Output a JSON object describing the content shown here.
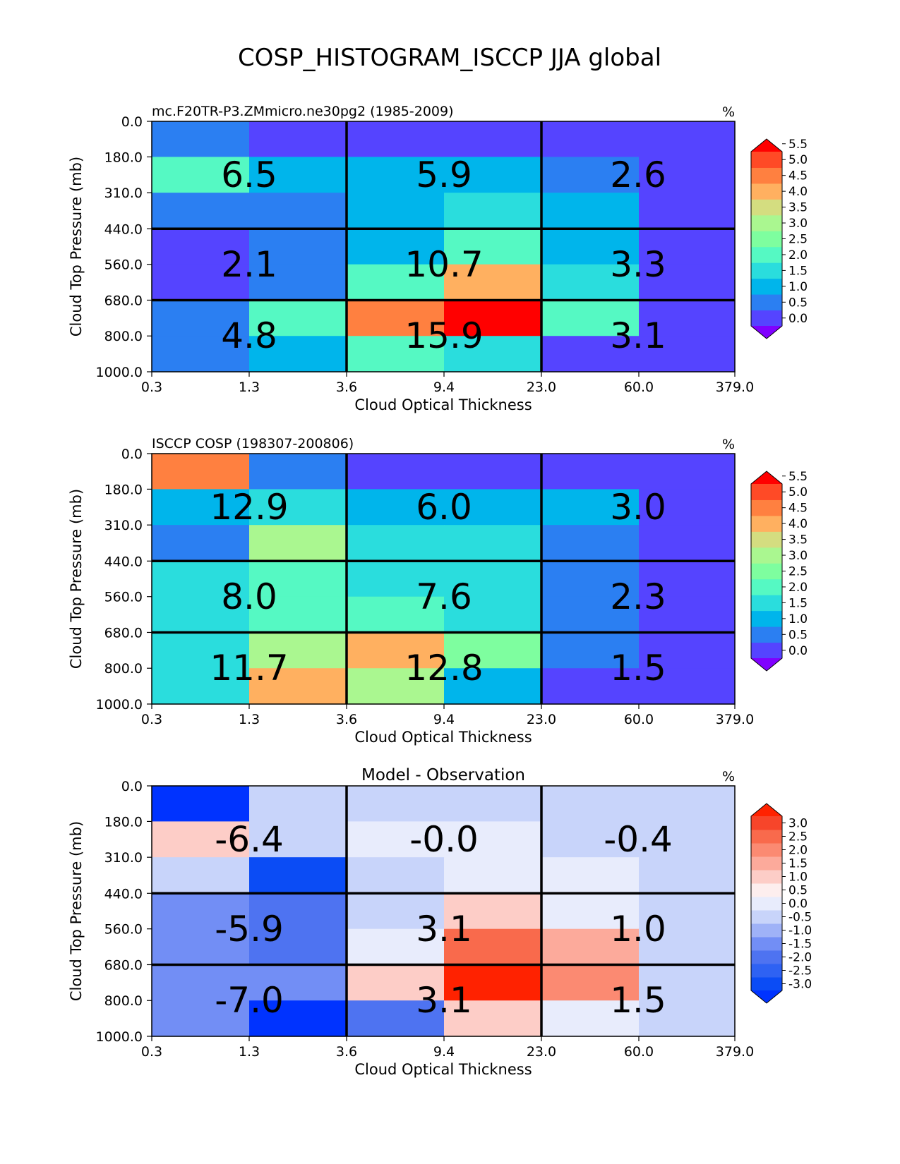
{
  "figure": {
    "title": "COSP_HISTOGRAM_ISCCP JJA global"
  },
  "chart_data": [
    {
      "type": "heatmap",
      "title_left": "mc.F20TR-P3.ZMmicro.ne30pg2 (1985-2009)",
      "title_center": "",
      "units": "%",
      "xlabel": "Cloud Optical Thickness",
      "ylabel": "Cloud Top Pressure (mb)",
      "x_ticks": [
        "0.3",
        "1.3",
        "3.6",
        "9.4",
        "23.0",
        "60.0",
        "379.0"
      ],
      "y_ticks": [
        "0.0",
        "180.0",
        "310.0",
        "440.0",
        "560.0",
        "680.0",
        "800.0",
        "1000.0"
      ],
      "grid": true,
      "colorbar": {
        "ticks": [
          "5.5",
          "5.0",
          "4.5",
          "4.0",
          "3.5",
          "3.0",
          "2.5",
          "2.0",
          "1.5",
          "1.0",
          "0.5",
          "0.0"
        ],
        "over_color": "#ff0000",
        "under_color": "#8000ff",
        "colors": [
          "#5544ff",
          "#2b7ff2",
          "#00b5eb",
          "#2adddd",
          "#55f9c3",
          "#7efe9f",
          "#aaf790",
          "#d4dd80",
          "#ffb060",
          "#ff8040",
          "#ff4a26"
        ]
      },
      "cells": [
        [
          0.9,
          0.3,
          0.3,
          0.3,
          0.3,
          0.3
        ],
        [
          2.3,
          1.1,
          1.1,
          1.1,
          0.8,
          0.3
        ],
        [
          0.8,
          0.8,
          1.1,
          1.9,
          1.3,
          0.3
        ],
        [
          0.3,
          0.8,
          1.1,
          2.7,
          1.1,
          0.3
        ],
        [
          0.3,
          0.8,
          2.6,
          4.4,
          1.9,
          0.3
        ],
        [
          0.8,
          2.3,
          5.3,
          5.8,
          2.3,
          0.3
        ],
        [
          0.8,
          1.1,
          2.2,
          1.9,
          0.3,
          0.3
        ]
      ],
      "annotations": [
        [
          "6.5",
          "5.9",
          "2.6"
        ],
        [
          "2.1",
          "10.7",
          "3.3"
        ],
        [
          "4.8",
          "15.9",
          "3.1"
        ]
      ]
    },
    {
      "type": "heatmap",
      "title_left": "ISCCP COSP (198307-200806)",
      "title_center": "",
      "units": "%",
      "xlabel": "Cloud Optical Thickness",
      "ylabel": "Cloud Top Pressure (mb)",
      "x_ticks": [
        "0.3",
        "1.3",
        "3.6",
        "9.4",
        "23.0",
        "60.0",
        "379.0"
      ],
      "y_ticks": [
        "0.0",
        "180.0",
        "310.0",
        "440.0",
        "560.0",
        "680.0",
        "800.0",
        "1000.0"
      ],
      "grid": true,
      "colorbar": {
        "ticks": [
          "5.5",
          "5.0",
          "4.5",
          "4.0",
          "3.5",
          "3.0",
          "2.5",
          "2.0",
          "1.5",
          "1.0",
          "0.5",
          "0.0"
        ],
        "over_color": "#ff0000",
        "under_color": "#8000ff",
        "colors": [
          "#5544ff",
          "#2b7ff2",
          "#00b5eb",
          "#2adddd",
          "#55f9c3",
          "#7efe9f",
          "#aaf790",
          "#d4dd80",
          "#ffb060",
          "#ff8040",
          "#ff4a26"
        ]
      },
      "cells": [
        [
          5.3,
          0.8,
          0.3,
          0.3,
          0.3,
          0.3
        ],
        [
          1.1,
          1.9,
          1.1,
          1.1,
          1.1,
          0.3
        ],
        [
          0.8,
          3.3,
          1.9,
          1.9,
          0.8,
          0.3
        ],
        [
          1.9,
          2.3,
          1.9,
          1.9,
          0.8,
          0.3
        ],
        [
          1.9,
          2.3,
          2.3,
          1.9,
          0.8,
          0.3
        ],
        [
          1.9,
          3.3,
          4.8,
          2.8,
          0.8,
          0.3
        ],
        [
          1.9,
          4.8,
          3.8,
          1.1,
          0.3,
          0.3
        ]
      ],
      "annotations": [
        [
          "12.9",
          "6.0",
          "3.0"
        ],
        [
          "8.0",
          "7.6",
          "2.3"
        ],
        [
          "11.7",
          "12.8",
          "1.5"
        ]
      ]
    },
    {
      "type": "heatmap",
      "title_left": "",
      "title_center": "Model - Observation",
      "units": "%",
      "xlabel": "Cloud Optical Thickness",
      "ylabel": "Cloud Top Pressure (mb)",
      "x_ticks": [
        "0.3",
        "1.3",
        "3.6",
        "9.4",
        "23.0",
        "60.0",
        "379.0"
      ],
      "y_ticks": [
        "0.0",
        "180.0",
        "310.0",
        "440.0",
        "560.0",
        "680.0",
        "800.0",
        "1000.0"
      ],
      "grid": true,
      "colorbar": {
        "ticks": [
          "3.0",
          "2.5",
          "2.0",
          "1.5",
          "1.0",
          "0.5",
          "0.0",
          "-0.5",
          "-1.0",
          "-1.5",
          "-2.0",
          "-2.5",
          "-3.0"
        ],
        "over_color": "#ff2200",
        "under_color": "#0033ff",
        "colors": [
          "#0b4cf5",
          "#2e62f3",
          "#4e73f1",
          "#728ef5",
          "#9fb2f7",
          "#c8d4fa",
          "#e8ecfc",
          "#fdeeee",
          "#fdcdc7",
          "#fcaa9b",
          "#fb8a72",
          "#f96a4c",
          "#f7452a"
        ]
      },
      "cells": [
        [
          -4.4,
          -0.1,
          -0.1,
          -0.1,
          -0.1,
          -0.1
        ],
        [
          1.2,
          -0.1,
          0.2,
          0.2,
          -0.1,
          -0.1
        ],
        [
          -0.1,
          -2.6,
          -0.1,
          0.2,
          0.2,
          -0.1
        ],
        [
          -1.2,
          -1.8,
          -0.1,
          1.2,
          0.2,
          -0.1
        ],
        [
          -1.2,
          -1.8,
          0.2,
          2.7,
          1.7,
          -0.1
        ],
        [
          -1.2,
          -1.2,
          1.2,
          3.2,
          2.2,
          -0.1
        ],
        [
          -1.2,
          -3.3,
          -1.8,
          1.2,
          0.2,
          -0.1
        ]
      ],
      "annotations": [
        [
          "-6.4",
          "-0.0",
          "-0.4"
        ],
        [
          "-5.9",
          "3.1",
          "1.0"
        ],
        [
          "-7.0",
          "3.1",
          "1.5"
        ]
      ]
    }
  ]
}
